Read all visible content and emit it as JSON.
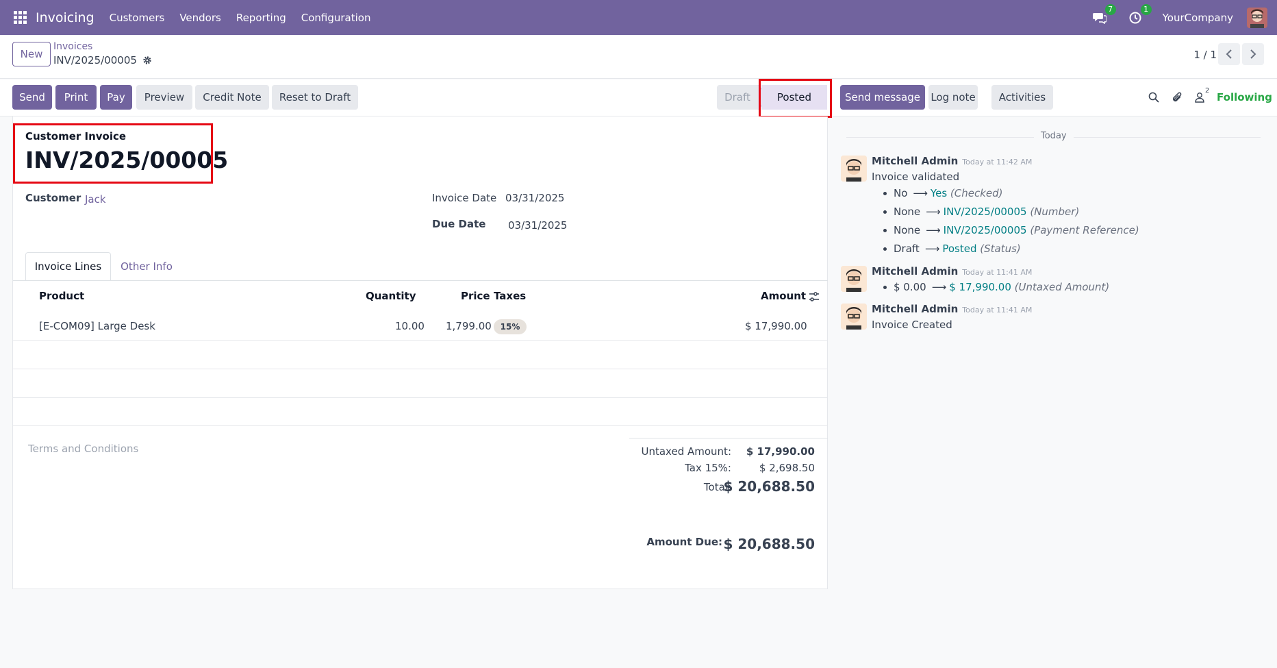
{
  "navbar": {
    "app_name": "Invoicing",
    "menu": [
      "Customers",
      "Vendors",
      "Reporting",
      "Configuration"
    ],
    "messages_badge": "7",
    "activities_badge": "1",
    "company": "YourCompany"
  },
  "control": {
    "new_label": "New",
    "breadcrumb_parent": "Invoices",
    "breadcrumb_current": "INV/2025/00005",
    "pager": "1 / 1"
  },
  "toolbar": {
    "send": "Send",
    "print": "Print",
    "pay": "Pay",
    "preview": "Preview",
    "credit_note": "Credit Note",
    "reset_to_draft": "Reset to Draft",
    "status_draft": "Draft",
    "status_posted": "Posted"
  },
  "chatter_toolbar": {
    "send_message": "Send message",
    "log_note": "Log note",
    "activities": "Activities",
    "followers_count": "2",
    "following": "Following"
  },
  "form": {
    "type_label": "Customer Invoice",
    "number": "INV/2025/00005",
    "customer_label": "Customer",
    "customer": "Jack",
    "invoice_date_label": "Invoice Date",
    "invoice_date": "03/31/2025",
    "due_date_label": "Due Date",
    "due_date": "03/31/2025",
    "tabs": [
      "Invoice Lines",
      "Other Info"
    ],
    "columns": {
      "product": "Product",
      "quantity": "Quantity",
      "price": "Price",
      "taxes": "Taxes",
      "amount": "Amount"
    },
    "line": {
      "product": "[E-COM09] Large Desk",
      "quantity": "10.00",
      "price": "1,799.00",
      "tax": "15%",
      "amount": "$ 17,990.00"
    },
    "terms_placeholder": "Terms and Conditions",
    "totals": {
      "untaxed_label": "Untaxed Amount:",
      "untaxed": "$ 17,990.00",
      "tax_label": "Tax 15%:",
      "tax": "$ 2,698.50",
      "total_label": "Total:",
      "total": "$ 20,688.50",
      "due_label": "Amount Due:",
      "due": "$ 20,688.50"
    }
  },
  "chatter": {
    "day": "Today",
    "messages": [
      {
        "author": "Mitchell Admin",
        "time": "Today at 11:42 AM",
        "body": "Invoice validated",
        "changes": [
          {
            "old": "No",
            "new": "Yes",
            "field": "(Checked)"
          },
          {
            "old": "None",
            "new": "INV/2025/00005",
            "field": "(Number)"
          },
          {
            "old": "None",
            "new": "INV/2025/00005",
            "field": "(Payment Reference)"
          },
          {
            "old": "Draft",
            "new": "Posted",
            "field": "(Status)"
          }
        ]
      },
      {
        "author": "Mitchell Admin",
        "time": "Today at 11:41 AM",
        "changes": [
          {
            "old": "$ 0.00",
            "new": "$ 17,990.00",
            "field": "(Untaxed Amount)"
          }
        ]
      },
      {
        "author": "Mitchell Admin",
        "time": "Today at 11:41 AM",
        "body": "Invoice Created"
      }
    ]
  }
}
